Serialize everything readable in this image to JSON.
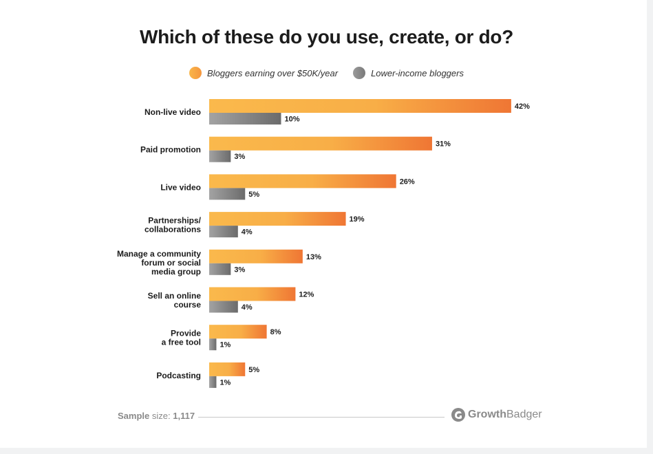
{
  "chart_data": {
    "type": "bar",
    "orientation": "horizontal",
    "title": "Which of these do you use, create, or do?",
    "categories": [
      [
        "Non-live video"
      ],
      [
        "Paid promotion"
      ],
      [
        "Live video"
      ],
      [
        "Partnerships/",
        "collaborations"
      ],
      [
        "Manage a community",
        "forum or social",
        "media group"
      ],
      [
        "Sell an online",
        "course"
      ],
      [
        "Provide",
        "a free tool"
      ],
      [
        "Podcasting"
      ]
    ],
    "series": [
      {
        "name": "Bloggers earning over $50K/year",
        "values": [
          42,
          31,
          26,
          19,
          13,
          12,
          8,
          5
        ],
        "labels": [
          "42%",
          "31%",
          "26%",
          "19%",
          "13%",
          "12%",
          "8%",
          "5%"
        ],
        "color": "#f9b64a",
        "color_end": "#f07a35"
      },
      {
        "name": "Lower-income bloggers",
        "values": [
          10,
          3,
          5,
          4,
          3,
          4,
          1,
          1
        ],
        "labels": [
          "10%",
          "3%",
          "5%",
          "4%",
          "3%",
          "4%",
          "1%",
          "1%"
        ],
        "color": "#9a9a9a",
        "color_end": "#6a6a6a"
      }
    ],
    "value_unit": "%",
    "grid": false,
    "legend_position": "top"
  },
  "footer": {
    "sample_label": "Sample",
    "sample_size_word": "size:",
    "sample_value": "1,117"
  },
  "brand": {
    "name_part1": "Growth",
    "name_part2": "Badger",
    "icon": "growthbadger-logo-icon"
  }
}
